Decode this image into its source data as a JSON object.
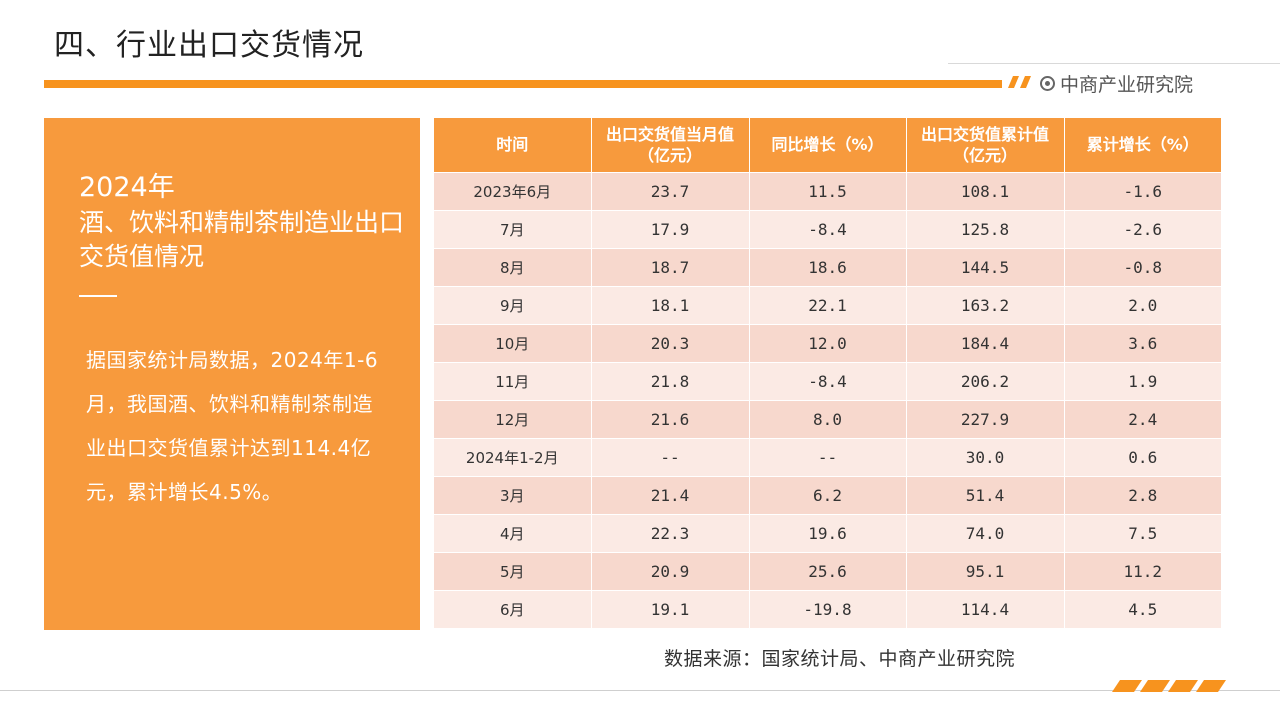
{
  "page": {
    "title": "四、行业出口交货情况",
    "brand_logo_text": "中商产业研究院",
    "accent_color": "#f7931e"
  },
  "left_panel": {
    "year": "2024年",
    "subtitle": "酒、饮料和精制茶制造业出口交货值情况",
    "body": "据国家统计局数据，2024年1-6月，我国酒、饮料和精制茶制造业出口交货值累计达到114.4亿元，累计增长4.5%。"
  },
  "table": {
    "headers": [
      "时间",
      "出口交货值当月值（亿元）",
      "同比增长（%）",
      "出口交货值累计值（亿元）",
      "累计增长（%）"
    ],
    "rows": [
      [
        "2023年6月",
        "23.7",
        "11.5",
        "108.1",
        "-1.6"
      ],
      [
        "7月",
        "17.9",
        "-8.4",
        "125.8",
        "-2.6"
      ],
      [
        "8月",
        "18.7",
        "18.6",
        "144.5",
        "-0.8"
      ],
      [
        "9月",
        "18.1",
        "22.1",
        "163.2",
        "2.0"
      ],
      [
        "10月",
        "20.3",
        "12.0",
        "184.4",
        "3.6"
      ],
      [
        "11月",
        "21.8",
        "-8.4",
        "206.2",
        "1.9"
      ],
      [
        "12月",
        "21.6",
        "8.0",
        "227.9",
        "2.4"
      ],
      [
        "2024年1-2月",
        "--",
        "--",
        "30.0",
        "0.6"
      ],
      [
        "3月",
        "21.4",
        "6.2",
        "51.4",
        "2.8"
      ],
      [
        "4月",
        "22.3",
        "19.6",
        "74.0",
        "7.5"
      ],
      [
        "5月",
        "20.9",
        "25.6",
        "95.1",
        "11.2"
      ],
      [
        "6月",
        "19.1",
        "-19.8",
        "114.4",
        "4.5"
      ]
    ]
  },
  "source": "数据来源：国家统计局、中商产业研究院"
}
